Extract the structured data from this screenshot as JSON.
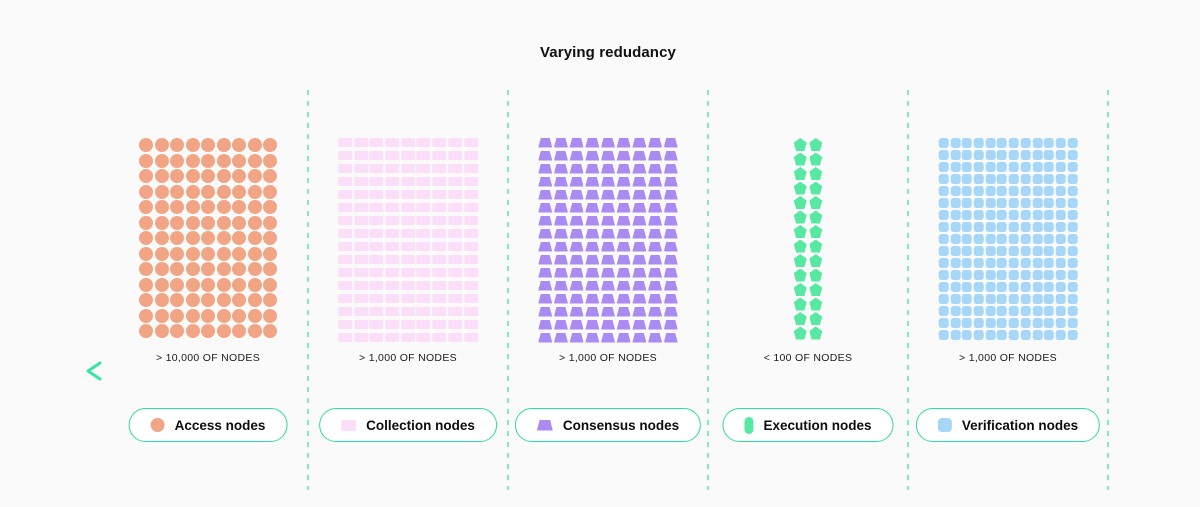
{
  "page": {
    "title": "Varying redudancy",
    "background": "#FAFAFA"
  },
  "arrow": {
    "direction": "left",
    "gradient": [
      "#38E6A1",
      "#12BE7D",
      "#04915F"
    ]
  },
  "separator_color": "#7FEDC0",
  "legend": {
    "pill_border_color": "#2EDD9B",
    "pill_background": "#FFFFFF"
  },
  "columns": [
    {
      "id": "access",
      "legend_label": "Access nodes",
      "count_label": "> 10,000 OF NODES",
      "shape": "circle",
      "legend_icon": "circle-icon",
      "color": "#F1A585",
      "grid": {
        "cols": 9,
        "rows": 13
      }
    },
    {
      "id": "collection",
      "legend_label": "Collection nodes",
      "count_label": "> 1,000 OF NODES",
      "shape": "rect",
      "legend_icon": "square-icon",
      "color": "#FBDFF8",
      "grid": {
        "cols": 9,
        "rows": 16
      }
    },
    {
      "id": "consensus",
      "legend_label": "Consensus nodes",
      "count_label": "> 1,000 OF NODES",
      "shape": "trapezoid",
      "legend_icon": "trapezoid-icon",
      "color": "#A98BF1",
      "grid": {
        "cols": 9,
        "rows": 16
      }
    },
    {
      "id": "execution",
      "legend_label": "Execution nodes",
      "count_label": "< 100 OF NODES",
      "shape": "pentagon",
      "legend_icon": "capsule-icon",
      "color": "#57E8A2",
      "grid": {
        "cols": 2,
        "rows": 14
      }
    },
    {
      "id": "verification",
      "legend_label": "Verification nodes",
      "count_label": "> 1,000 OF NODES",
      "shape": "square",
      "legend_icon": "rounded-square-icon",
      "color": "#A6D7F8",
      "grid": {
        "cols": 12,
        "rows": 17
      }
    }
  ]
}
